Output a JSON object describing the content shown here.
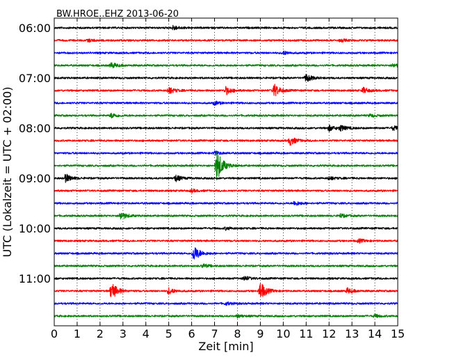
{
  "chart_data": {
    "type": "line",
    "title": "BW.HROE..EHZ 2013-06-20",
    "xlabel": "Zeit  [min]",
    "ylabel": "UTC (Lokalzeit = UTC + 02:00)",
    "xlim": [
      0,
      15
    ],
    "x_ticks": [
      "0",
      "1",
      "2",
      "3",
      "4",
      "5",
      "6",
      "7",
      "8",
      "9",
      "10",
      "11",
      "12",
      "13",
      "14",
      "15"
    ],
    "row_interval_min": 15,
    "y_tick_labels": [
      "06:00",
      "07:00",
      "08:00",
      "09:00",
      "10:00",
      "11:00"
    ],
    "grid": "vertical-dotted",
    "line_colors": [
      "#000000",
      "#ff0000",
      "#0000ff",
      "#008000"
    ],
    "series": [
      {
        "start": "06:00",
        "events": [
          [
            5.2,
            0.25
          ]
        ]
      },
      {
        "start": "06:15",
        "events": [
          [
            1.5,
            0.15
          ],
          [
            12.5,
            0.15
          ]
        ]
      },
      {
        "start": "06:30",
        "events": [
          [
            10.0,
            0.2
          ]
        ]
      },
      {
        "start": "06:45",
        "events": [
          [
            2.5,
            0.3
          ],
          [
            14.8,
            0.2
          ]
        ]
      },
      {
        "start": "07:00",
        "events": [
          [
            11.0,
            0.45
          ]
        ]
      },
      {
        "start": "07:15",
        "events": [
          [
            5.0,
            0.4
          ],
          [
            7.5,
            0.45
          ],
          [
            9.6,
            0.75
          ],
          [
            13.5,
            0.3
          ]
        ]
      },
      {
        "start": "07:30",
        "events": [
          [
            7.0,
            0.2
          ]
        ]
      },
      {
        "start": "07:45",
        "events": [
          [
            2.5,
            0.25
          ],
          [
            13.8,
            0.15
          ]
        ]
      },
      {
        "start": "08:00",
        "events": [
          [
            12.0,
            0.3
          ],
          [
            12.5,
            0.3
          ],
          [
            14.8,
            0.25
          ]
        ]
      },
      {
        "start": "08:15",
        "events": [
          [
            10.3,
            0.5
          ]
        ]
      },
      {
        "start": "08:30",
        "events": [
          [
            7.0,
            0.2
          ]
        ]
      },
      {
        "start": "08:45",
        "events": [
          [
            7.1,
            1.8
          ]
        ]
      },
      {
        "start": "09:00",
        "events": [
          [
            0.5,
            0.45
          ],
          [
            5.3,
            0.35
          ],
          [
            12.0,
            0.2
          ]
        ]
      },
      {
        "start": "09:15",
        "events": [
          [
            6.0,
            0.15
          ]
        ]
      },
      {
        "start": "09:30",
        "events": [
          [
            10.5,
            0.25
          ]
        ]
      },
      {
        "start": "09:45",
        "events": [
          [
            2.9,
            0.45
          ],
          [
            12.5,
            0.2
          ]
        ]
      },
      {
        "start": "10:00",
        "events": [
          [
            7.5,
            0.15
          ]
        ]
      },
      {
        "start": "10:15",
        "events": [
          [
            13.3,
            0.2
          ]
        ]
      },
      {
        "start": "10:30",
        "events": [
          [
            6.1,
            0.9
          ]
        ]
      },
      {
        "start": "10:45",
        "events": [
          [
            6.5,
            0.2
          ]
        ]
      },
      {
        "start": "11:00",
        "events": [
          [
            8.3,
            0.25
          ]
        ]
      },
      {
        "start": "11:15",
        "events": [
          [
            2.5,
            1.0
          ],
          [
            5.0,
            0.35
          ],
          [
            9.0,
            1.0
          ],
          [
            12.8,
            0.3
          ]
        ]
      },
      {
        "start": "11:30",
        "events": [
          [
            7.5,
            0.15
          ]
        ]
      },
      {
        "start": "11:45",
        "events": [
          [
            8.0,
            0.15
          ],
          [
            14.0,
            0.15
          ]
        ]
      }
    ]
  }
}
